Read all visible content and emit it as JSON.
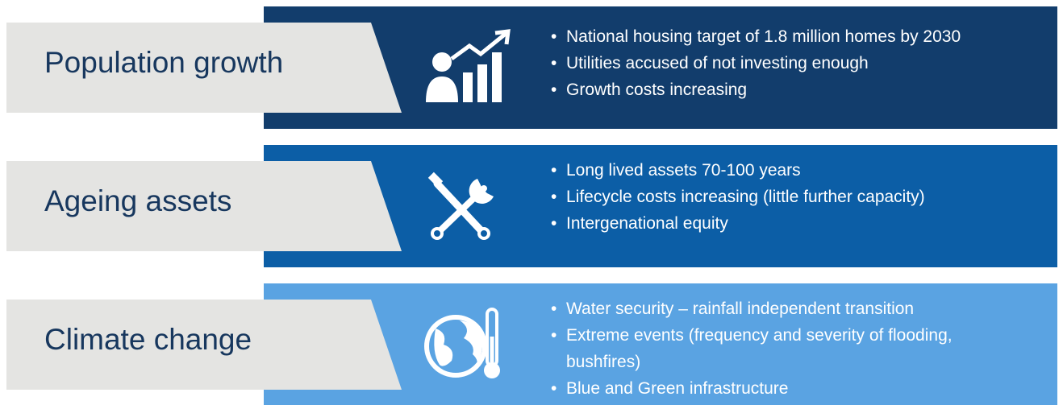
{
  "rows": [
    {
      "label": "Population growth",
      "bullets": [
        "National housing target of 1.8 million homes by 2030",
        "Utilities accused of not investing enough",
        "Growth costs increasing"
      ]
    },
    {
      "label": "Ageing assets",
      "bullets": [
        "Long lived assets 70-100 years",
        "Lifecycle costs increasing (little further capacity)",
        "Intergenational equity"
      ]
    },
    {
      "label": "Climate change",
      "bullets": [
        "Water security – rainfall independent transition",
        "Extreme events (frequency and severity of flooding, bushfires)",
        "Blue and Green infrastructure"
      ]
    }
  ]
}
